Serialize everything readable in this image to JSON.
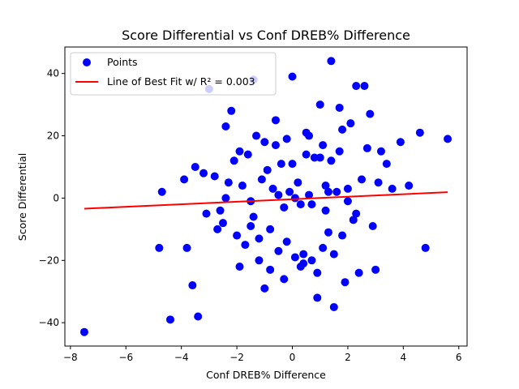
{
  "chart_data": {
    "type": "scatter",
    "title": "Score Differential vs Conf DREB% Difference",
    "xlabel": "Conf DREB% Difference",
    "ylabel": "Score Differential",
    "xlim": [
      -8.2,
      6.3
    ],
    "ylim": [
      -47.5,
      48.5
    ],
    "xticks": [
      -8,
      -6,
      -4,
      -2,
      0,
      2,
      4,
      6
    ],
    "yticks": [
      -40,
      -20,
      0,
      20,
      40
    ],
    "legend_position": "upper-left",
    "colors": {
      "points": "#0000ff",
      "fit_line": "#ff0000"
    },
    "series": [
      {
        "name": "Points",
        "kind": "scatter",
        "x": [
          -7.5,
          -4.4,
          -3.4,
          -2.2,
          -1.4,
          0.0,
          1.4,
          2.3,
          2.6,
          4.6,
          5.6,
          3.9,
          2.8,
          -3.6,
          -3.8,
          -4.8,
          -4.7,
          -3.0,
          -3.9,
          -2.4,
          -1.9,
          -1.3,
          -0.6,
          0.5,
          1.0,
          1.7,
          2.1,
          3.2,
          3.4,
          4.2,
          4.8,
          -1.0,
          -0.3,
          0.3,
          0.9,
          1.5,
          1.9,
          2.4,
          3.0,
          -2.7,
          -2.5,
          -2.0,
          -1.7,
          -1.5,
          -1.2,
          -0.8,
          -0.5,
          -0.2,
          0.1,
          0.4,
          0.7,
          1.1,
          1.3,
          1.8,
          2.2,
          2.9,
          3.6,
          -3.5,
          -3.2,
          -2.8,
          -2.3,
          -1.8,
          -1.1,
          -0.7,
          -0.1,
          0.2,
          0.6,
          1.2,
          1.6,
          2.0,
          2.5,
          3.1,
          -0.9,
          -0.4,
          0.8,
          1.4,
          2.7,
          -2.1,
          -1.6,
          -0.6,
          0.0,
          0.5,
          1.0,
          1.7,
          -3.1,
          -2.6,
          -1.4,
          -0.3,
          0.3,
          1.2,
          2.3,
          -1.9,
          -1.2,
          -0.8,
          0.4,
          0.9,
          1.5,
          -2.4,
          -1.5,
          -0.5,
          0.1,
          0.7,
          1.3,
          2.0,
          -1.0,
          -0.2,
          0.6,
          1.1,
          1.8
        ],
        "y": [
          -43,
          -39,
          -38,
          28,
          38,
          39,
          44,
          36,
          36,
          21,
          19,
          18,
          27,
          -28,
          -16,
          -16,
          2,
          35,
          6,
          23,
          15,
          20,
          25,
          21,
          30,
          29,
          24,
          15,
          11,
          4,
          -16,
          -29,
          -26,
          -22,
          -32,
          -35,
          -27,
          -24,
          -23,
          -10,
          -8,
          -12,
          -15,
          -9,
          -13,
          -10,
          -17,
          -14,
          -19,
          -18,
          -20,
          -16,
          -11,
          -12,
          -7,
          -9,
          3,
          10,
          8,
          7,
          5,
          4,
          6,
          3,
          2,
          5,
          1,
          4,
          2,
          3,
          6,
          5,
          9,
          11,
          13,
          12,
          16,
          12,
          14,
          17,
          11,
          14,
          13,
          15,
          -5,
          -4,
          -6,
          -3,
          -2,
          -4,
          -5,
          -22,
          -20,
          -23,
          -21,
          -24,
          -18,
          0,
          -1,
          1,
          0,
          -2,
          2,
          -1,
          18,
          19,
          20,
          17,
          22
        ]
      },
      {
        "name": "Line of Best Fit w/ R² = 0.003",
        "kind": "line",
        "x": [
          -7.5,
          5.6
        ],
        "y": [
          -3.4,
          1.9
        ]
      }
    ]
  }
}
